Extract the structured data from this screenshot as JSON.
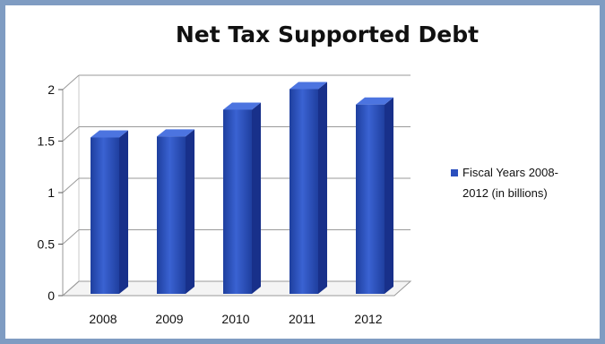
{
  "chart_data": {
    "type": "bar",
    "title": "Net Tax Supported Debt",
    "categories": [
      "2008",
      "2009",
      "2010",
      "2011",
      "2012"
    ],
    "series": [
      {
        "name_lines": [
          "Fiscal Years 2008-",
          "2012 (in billions)"
        ],
        "values": [
          1.5,
          1.51,
          1.77,
          1.97,
          1.82
        ],
        "color": "#2b4fbd"
      }
    ],
    "ylim": [
      0,
      2
    ],
    "yticks": [
      "0",
      "0.5",
      "1",
      "1.5",
      "2"
    ],
    "grid": true,
    "legend_position": "right"
  }
}
